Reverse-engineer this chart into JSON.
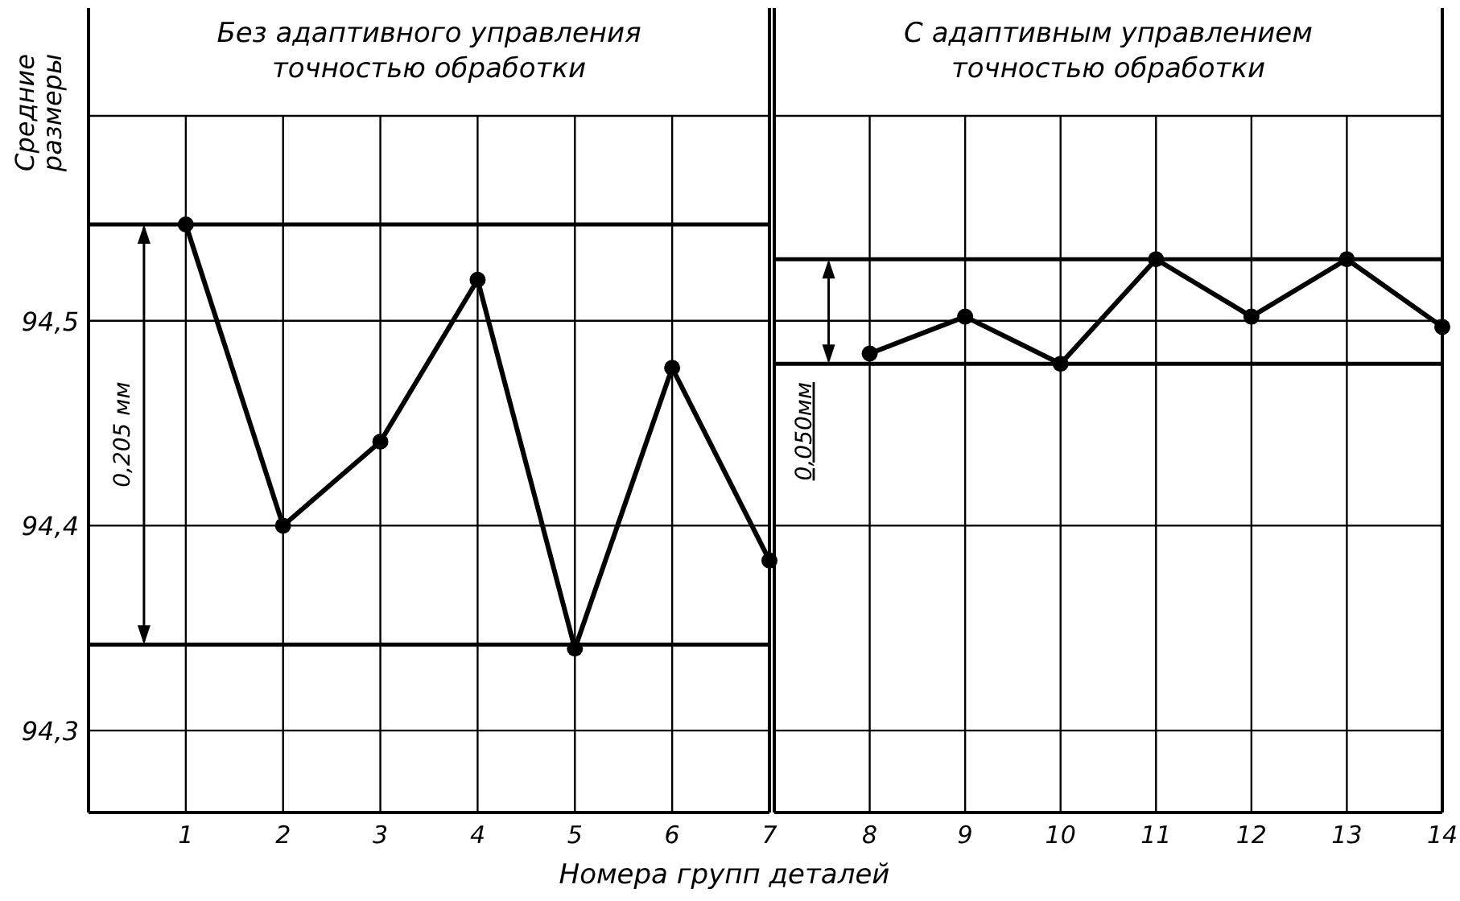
{
  "chart_data": [
    {
      "type": "line",
      "title": "Без адаптивного управления\nточностью обработки",
      "ylabel": "Средние\nразмеры",
      "xlabel": "Номера групп деталей",
      "xlim": [
        0,
        7
      ],
      "xticks": [
        1,
        2,
        3,
        4,
        5,
        6,
        7
      ],
      "ylim": [
        94.26,
        94.6
      ],
      "yticks": [
        {
          "value": 94.3,
          "label": "94,3"
        },
        {
          "value": 94.4,
          "label": "94,4"
        },
        {
          "value": 94.5,
          "label": "94,5"
        },
        {
          "value": 94.6,
          "label": null
        }
      ],
      "grid": true,
      "marker": "circle",
      "line_style": "solid",
      "series": [
        {
          "color": "#000000",
          "x": [
            1,
            2,
            3,
            4,
            5,
            6,
            7
          ],
          "values": [
            94.547,
            94.4,
            94.441,
            94.52,
            94.34,
            94.477,
            94.383
          ]
        },
        {
          "color": "#000000",
          "marker": "none",
          "x": [
            0,
            7
          ],
          "values": [
            94.547,
            94.547
          ]
        },
        {
          "color": "#000000",
          "marker": "none",
          "x": [
            0,
            7
          ],
          "values": [
            94.342,
            94.342
          ]
        }
      ],
      "annotations": [
        "0,205 мм"
      ]
    },
    {
      "type": "line",
      "title": "С адаптивным управлением\nточностью обработки",
      "xlim": [
        7,
        14
      ],
      "xticks": [
        8,
        9,
        10,
        11,
        12,
        13,
        14
      ],
      "ylim": [
        94.26,
        94.6
      ],
      "yticks": [
        {
          "value": 94.3,
          "label": null
        },
        {
          "value": 94.4,
          "label": null
        },
        {
          "value": 94.5,
          "label": null
        },
        {
          "value": 94.6,
          "label": null
        }
      ],
      "tick_labels": "x",
      "grid": true,
      "marker": "circle",
      "line_style": "solid",
      "series": [
        {
          "color": "#000000",
          "x": [
            8,
            9,
            10,
            11,
            12,
            13,
            14
          ],
          "values": [
            94.484,
            94.502,
            94.479,
            94.53,
            94.502,
            94.53,
            94.497
          ]
        },
        {
          "color": "#000000",
          "marker": "none",
          "x": [
            7,
            14
          ],
          "values": [
            94.53,
            94.53
          ]
        },
        {
          "color": "#000000",
          "marker": "none",
          "x": [
            7,
            14
          ],
          "values": [
            94.479,
            94.479
          ]
        }
      ],
      "annotations": [
        {
          "text": "0,050мм",
          "x": 7.57,
          "y": 94.479
        }
      ]
    }
  ]
}
